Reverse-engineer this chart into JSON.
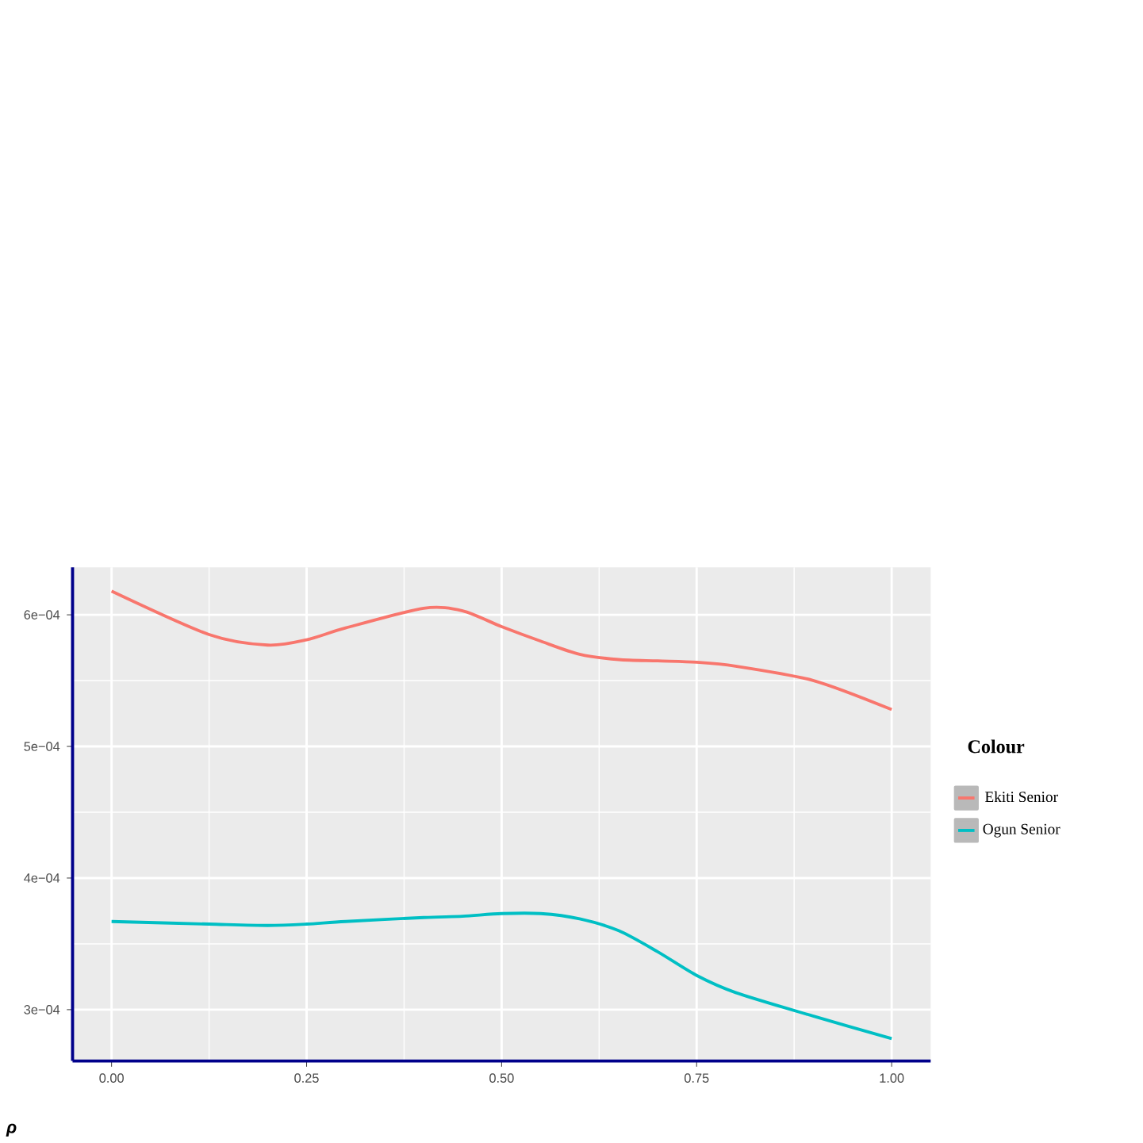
{
  "chart_data": {
    "type": "line",
    "xlabel": "ρ",
    "legend_title": "Colour",
    "legend": "right",
    "grid": true,
    "x": [
      0,
      0.125,
      0.2,
      0.25,
      0.3,
      0.4,
      0.45,
      0.5,
      0.55,
      0.6,
      0.65,
      0.7,
      0.75,
      0.8,
      0.9,
      1.0
    ],
    "series": [
      {
        "name": "Ekiti Senior",
        "color": "#f8766d",
        "values": [
          0.000618,
          0.000585,
          0.000577,
          0.000581,
          0.00059,
          0.000605,
          0.000603,
          0.000591,
          0.00058,
          0.00057,
          0.000566,
          0.000565,
          0.000564,
          0.000561,
          0.00055,
          0.000528
        ]
      },
      {
        "name": "Ogun Senior",
        "color": "#00bfc4",
        "values": [
          0.000367,
          0.000365,
          0.000364,
          0.000365,
          0.000367,
          0.00037,
          0.000371,
          0.000373,
          0.000373,
          0.000369,
          0.00036,
          0.000344,
          0.000326,
          0.000313,
          0.000295,
          0.000278
        ]
      }
    ],
    "xlim": [
      -0.05,
      1.05
    ],
    "ylim": [
      0.000261,
      0.000636
    ],
    "xticks": [
      {
        "value": 0,
        "label": "0.00"
      },
      {
        "value": 0.25,
        "label": "0.25"
      },
      {
        "value": 0.5,
        "label": "0.50"
      },
      {
        "value": 0.75,
        "label": "0.75"
      },
      {
        "value": 1,
        "label": "1.00"
      }
    ],
    "yticks": [
      {
        "value": 0.0003,
        "label": "3e−04"
      },
      {
        "value": 0.0004,
        "label": "4e−04"
      },
      {
        "value": 0.0005,
        "label": "5e−04"
      },
      {
        "value": 0.0006,
        "label": "6e−04"
      }
    ]
  }
}
